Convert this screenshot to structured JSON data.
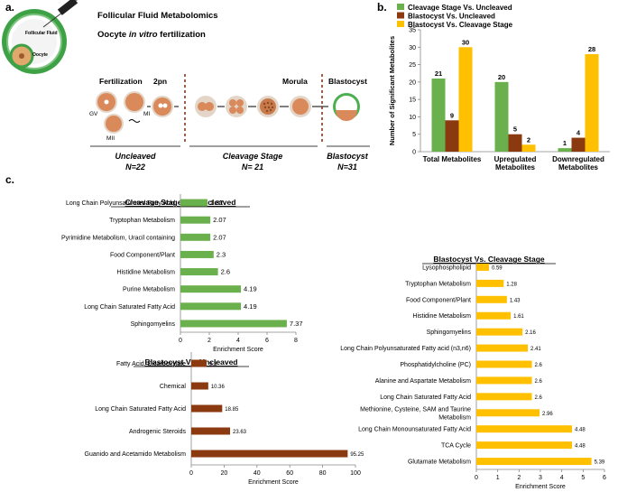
{
  "panel_a": {
    "letter": "a.",
    "follicle_label": "Follicular Fluid",
    "oocyte_label": "Oocyte",
    "line1": "Follicular Fluid Metabolomics",
    "line2_pre": "Oocyte ",
    "line2_em": "in vitro",
    "line2_post": " fertilization",
    "stage_fertilization": "Fertilization",
    "stage_2pn": "2pn",
    "stage_morula": "Morula",
    "stage_blastocyst": "Blastocyst",
    "gv": "GV",
    "mi": "MI",
    "mii": "MII",
    "group1_name": "Uncleaved",
    "group1_n": "N=22",
    "group2_name": "Cleavage Stage",
    "group2_n": "N= 21",
    "group3_name": "Blastocyst",
    "group3_n": "N=31",
    "colors": {
      "embryo": "#d9895a",
      "zona": "#7a7a7a",
      "follicle": "#3ea145",
      "blast": "#4caf50"
    }
  },
  "panel_b_letter": "b.",
  "panel_c_letter": "c.",
  "chart_data": [
    {
      "id": "b",
      "type": "bar",
      "categories": [
        "Total Metabolites",
        "Upregulated Metabolites",
        "Downregulated Metabolites"
      ],
      "categories_lines": [
        [
          "Total Metabolites"
        ],
        [
          "Upregulated",
          "Metabolites"
        ],
        [
          "Downregulated",
          "Metabolites"
        ]
      ],
      "series": [
        {
          "name": "Cleavage Stage Vs. Uncleaved",
          "values": [
            21,
            20,
            1
          ],
          "color": "#6ab04c"
        },
        {
          "name": "Blastocyst Vs. Uncleaved",
          "values": [
            9,
            5,
            4
          ],
          "color": "#8b3a0f"
        },
        {
          "name": "Blastocyst Vs. Cleavage Stage",
          "values": [
            30,
            2,
            28
          ],
          "color": "#ffc000"
        }
      ],
      "ylabel": "Number of Significant Metabolites",
      "ylim": [
        0,
        35
      ],
      "yticks": [
        0,
        5,
        10,
        15,
        20,
        25,
        30,
        35
      ],
      "legend": "top"
    },
    {
      "id": "c1",
      "type": "bar",
      "orientation": "horizontal",
      "title": "Cleavage Stage Vs. Uncleaved",
      "categories": [
        "Long Chain Polyunsaturated Fatty Acid",
        "Tryptophan Metabolism",
        "Pyrimidine Metabolism, Uracil containing",
        "Food Component/Plant",
        "Histidine Metabolism",
        "Purine Metabolism",
        "Long Chain Saturated Fatty Acid",
        "Sphingomyelins"
      ],
      "values": [
        1.87,
        2.07,
        2.07,
        2.3,
        2.6,
        4.19,
        4.19,
        7.37
      ],
      "labels": [
        "1.87",
        "2.07",
        "2.07",
        "2.3",
        "2.6",
        "4.19",
        "4.19",
        "7.37"
      ],
      "color": "#6ab04c",
      "xlabel": "Enrichment Score",
      "xlim": [
        0,
        8
      ],
      "xticks": [
        0,
        2,
        4,
        6,
        8
      ]
    },
    {
      "id": "c2",
      "type": "bar",
      "orientation": "horizontal",
      "title": "Blastocyst Vs. Uncleaved",
      "categories": [
        "Fatty Acid, Dicarboxylate",
        "Chemical",
        "Long Chain Saturated Fatty Acid",
        "Androgenic Steroids",
        "Guanido and Acetamido Metabolism"
      ],
      "values": [
        9.3,
        10.36,
        18.85,
        23.63,
        95.25
      ],
      "labels": [
        "9.3",
        "10.36",
        "18.85",
        "23.63",
        "95.25"
      ],
      "color": "#8b3a0f",
      "xlabel": "Enrichment Score",
      "xlim": [
        0,
        100
      ],
      "xticks": [
        0,
        20,
        40,
        60,
        80,
        100
      ]
    },
    {
      "id": "c3",
      "type": "bar",
      "orientation": "horizontal",
      "title": "Blastocyst Vs. Cleavage Stage",
      "categories": [
        "Lysophospholipid",
        "Tryptophan Metabolism",
        "Food Component/Plant",
        "Histidine Metabolism",
        "Sphingomyelins",
        "Long Chain Polyunsaturated Fatty acid (n3,n6)",
        "Phosphatidylcholine (PC)",
        "Alanine and Aspartate Metabolism",
        "Long Chain Saturated Fatty Acid",
        "Methionine, Cysteine, SAM and Taurine Metabolism",
        "Long Chain Monounsaturated Fatty Acid",
        "TCA Cycle",
        "Glutamate Metabolism"
      ],
      "categories_lines": [
        [
          "Lysophospholipid"
        ],
        [
          "Tryptophan Metabolism"
        ],
        [
          "Food Component/Plant"
        ],
        [
          "Histidine Metabolism"
        ],
        [
          "Sphingomyelins"
        ],
        [
          "Long Chain Polyunsaturated Fatty acid (n3,n6)"
        ],
        [
          "Phosphatidylcholine (PC)"
        ],
        [
          "Alanine and Aspartate Metabolism"
        ],
        [
          "Long Chain Saturated Fatty Acid"
        ],
        [
          "Methionine, Cysteine, SAM and Taurine",
          "Metabolism"
        ],
        [
          "Long Chain Monounsaturated Fatty Acid"
        ],
        [
          "TCA Cycle"
        ],
        [
          "Glutamate Metabolism"
        ]
      ],
      "values": [
        0.59,
        1.28,
        1.43,
        1.61,
        2.16,
        2.41,
        2.6,
        2.6,
        2.6,
        2.96,
        4.48,
        4.48,
        5.39
      ],
      "labels": [
        "0.59",
        "1.28",
        "1.43",
        "1.61",
        "2.16",
        "2.41",
        "2.6",
        "2.6",
        "2.6",
        "2.96",
        "4.48",
        "4.48",
        "5.39"
      ],
      "color": "#ffc000",
      "xlabel": "Enrichment Score",
      "xlim": [
        0,
        6
      ],
      "xticks": [
        0,
        1,
        2,
        3,
        4,
        5,
        6
      ]
    }
  ]
}
